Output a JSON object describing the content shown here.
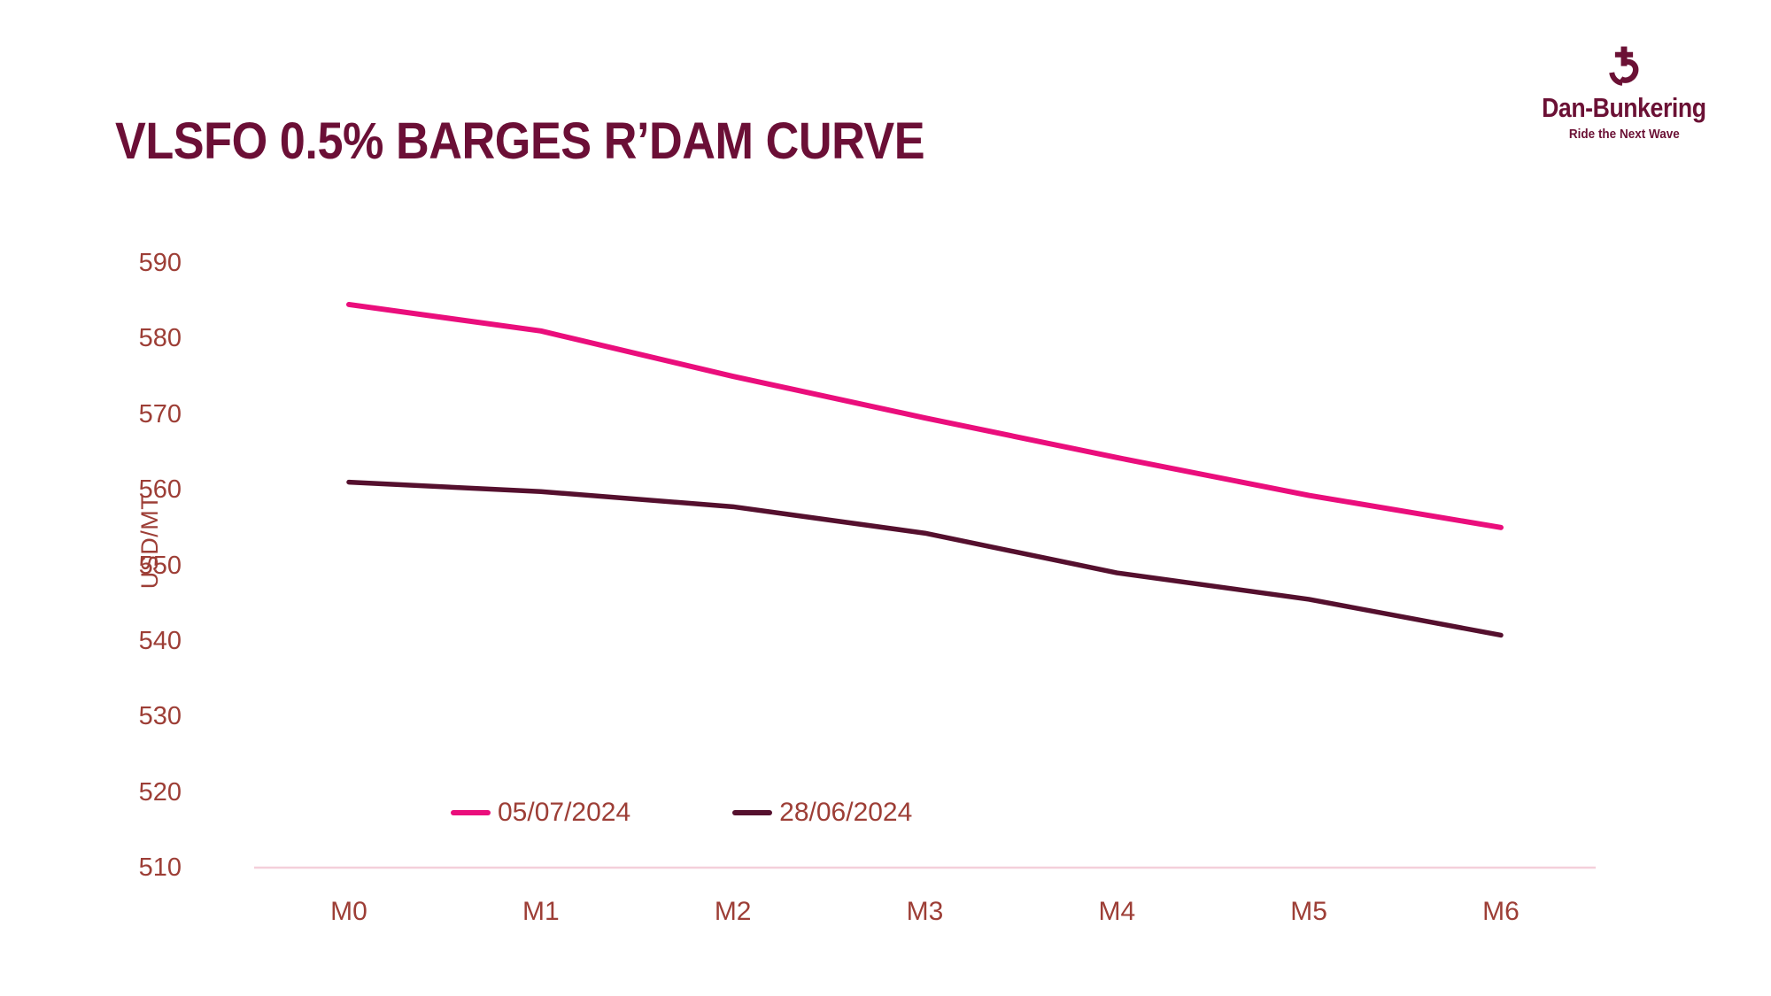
{
  "header": {
    "title": "VLSFO 0.5% BARGES R’DAM CURVE",
    "title_color": "#6B0F36"
  },
  "logo": {
    "brand": "Dan-Bunkering",
    "tagline": "Ride the Next Wave",
    "color": "#6B1135",
    "icon": "anchor-b-mark"
  },
  "chart_data": {
    "type": "line",
    "title": "VLSFO 0.5% BARGES R’DAM CURVE",
    "categories": [
      "M0",
      "M1",
      "M2",
      "M3",
      "M4",
      "M5",
      "M6"
    ],
    "series": [
      {
        "name": "05/07/2024",
        "color": "#EA0E7C",
        "values": [
          584.5,
          581.0,
          575.0,
          569.5,
          564.25,
          559.25,
          555.0
        ]
      },
      {
        "name": "28/06/2024",
        "color": "#55102E",
        "values": [
          561.0,
          559.75,
          557.75,
          554.25,
          549.0,
          545.5,
          540.75
        ]
      }
    ],
    "xlabel": "",
    "ylabel": "USD/MT",
    "ylim": [
      510,
      590
    ],
    "ytick_step": 10,
    "grid": false,
    "legend_position": "bottom-inside",
    "axis_text_color": "#9D3E36",
    "axis_line_color": "#F4CFDA"
  }
}
